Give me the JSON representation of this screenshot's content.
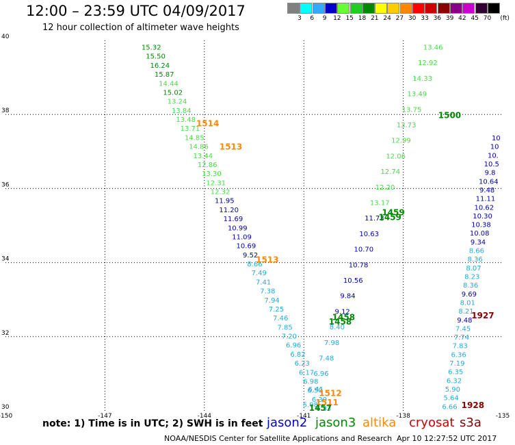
{
  "header": {
    "title": "12:00 – 23:59 UTC 04/09/2017",
    "subtitle": "12 hour collection of altimeter wave heights"
  },
  "legend": {
    "bins": [
      {
        "label": "3",
        "color": "#808080"
      },
      {
        "label": "6",
        "color": "#00ffff"
      },
      {
        "label": "9",
        "color": "#33aaff"
      },
      {
        "label": "12",
        "color": "#0000cc"
      },
      {
        "label": "15",
        "color": "#66ff33"
      },
      {
        "label": "18",
        "color": "#22cc22"
      },
      {
        "label": "21",
        "color": "#008800"
      },
      {
        "label": "24",
        "color": "#ffff00"
      },
      {
        "label": "27",
        "color": "#ffcc00"
      },
      {
        "label": "30",
        "color": "#ff8800"
      },
      {
        "label": "33",
        "color": "#ff0000"
      },
      {
        "label": "36",
        "color": "#cc0000"
      },
      {
        "label": "39",
        "color": "#880000"
      },
      {
        "label": "42",
        "color": "#880088"
      },
      {
        "label": "45",
        "color": "#cc00cc"
      },
      {
        "label": "70",
        "color": "#330033"
      },
      {
        "label": "",
        "color": "#000000"
      }
    ],
    "unit": "(ft)"
  },
  "colors": {
    "light_green": "#44dd44",
    "dark_green": "#008800",
    "dark_blue": "#0000aa",
    "light_blue": "#22aadd",
    "orange": "#ff8800",
    "dark_red": "#880000"
  },
  "footer": {
    "note": "note: 1) Time is in UTC; 2) SWH is in feet",
    "satellites": [
      {
        "name": "jason2",
        "color": "#0000cc"
      },
      {
        "name": "jason3",
        "color": "#008800"
      },
      {
        "name": "altika",
        "color": "#ff8800"
      },
      {
        "name": "cryosat",
        "color": "#cc0000"
      },
      {
        "name": "s3a",
        "color": "#880000"
      }
    ],
    "credit": "NOAA/NESDIS Center for Satellite Applications and Research",
    "timestamp": "Apr 10 12:27:52 UTC 2017"
  },
  "chart_data": {
    "type": "scatter",
    "x_ticks": [
      "-150",
      "-147",
      "-144",
      "-141",
      "-138",
      "-135"
    ],
    "y_ticks": [
      "30",
      "32",
      "34",
      "36",
      "38",
      "40"
    ],
    "xlim": [
      -150,
      -135
    ],
    "ylim": [
      30,
      40
    ],
    "grid": true,
    "track1_values": [
      "15.32",
      "15.50",
      "16.24",
      "15.87",
      "14.44",
      "15.02",
      "13.24",
      "13.84",
      "13.48",
      "13.71",
      "14.85",
      "14.86",
      "13.44",
      "12.86",
      "13.30",
      "12.31",
      "12.32",
      "11.95",
      "11.20",
      "11.69",
      "10.99",
      "11.09",
      "10.69",
      "9.52",
      "8.66",
      "7.49",
      "7.41",
      "7.38",
      "7.94",
      "7.25",
      "7.46",
      "7.85",
      "7.20",
      "6.96",
      "6.82",
      "6.23",
      "6.17",
      "6.98",
      "6.50",
      "6.39",
      "6.33"
    ],
    "track2_values": [
      "13.46",
      "12.92",
      "14.33",
      "13.49",
      "13.75",
      "13.73",
      "12.99",
      "12.06",
      "12.74",
      "12.20",
      "13.17",
      "11.73",
      "10.63",
      "10.70",
      "10.78",
      "10.56",
      "9.84",
      "9.12",
      "8.40",
      "7.98",
      "7.48",
      "6.96",
      "6.41",
      "5.98"
    ],
    "track3_values": [
      "10",
      "10",
      "10.",
      "10.5",
      "9.8",
      "10.64",
      "9.48",
      "11.11",
      "10.62",
      "10.30",
      "10.38",
      "10.08",
      "9.34",
      "8.66",
      "8.36",
      "8.07",
      "8.23",
      "8.36",
      "9.69",
      "8.01",
      "8.21",
      "9.48",
      "7.45",
      "7.74",
      "7.83",
      "6.36",
      "7.19",
      "6.35",
      "6.32",
      "5.90",
      "5.64",
      "6.66"
    ],
    "time_labels": [
      {
        "t": "1514",
        "color": "orange",
        "lon": -143.9,
        "lat": 37.68
      },
      {
        "t": "1513",
        "color": "orange",
        "lon": -143.2,
        "lat": 37.05
      },
      {
        "t": "1513",
        "color": "orange",
        "lon": -142.1,
        "lat": 34.0
      },
      {
        "t": "1512",
        "color": "orange",
        "lon": -140.2,
        "lat": 30.4
      },
      {
        "t": "1511",
        "color": "orange",
        "lon": -140.3,
        "lat": 30.15
      },
      {
        "t": "1457",
        "color": "dark_green",
        "lon": -140.5,
        "lat": 30.0
      },
      {
        "t": "1458",
        "color": "dark_green",
        "lon": -139.8,
        "lat": 32.45
      },
      {
        "t": "1458",
        "color": "dark_green",
        "lon": -139.9,
        "lat": 32.33
      },
      {
        "t": "1459",
        "color": "dark_green",
        "lon": -138.3,
        "lat": 35.28
      },
      {
        "t": "1459",
        "color": "dark_green",
        "lon": -138.4,
        "lat": 35.15
      },
      {
        "t": "1500",
        "color": "dark_green",
        "lon": -136.6,
        "lat": 37.9
      },
      {
        "t": "1927",
        "color": "dark_red",
        "lon": -135.6,
        "lat": 32.5
      },
      {
        "t": "1928",
        "color": "dark_red",
        "lon": -135.9,
        "lat": 30.07
      }
    ]
  }
}
